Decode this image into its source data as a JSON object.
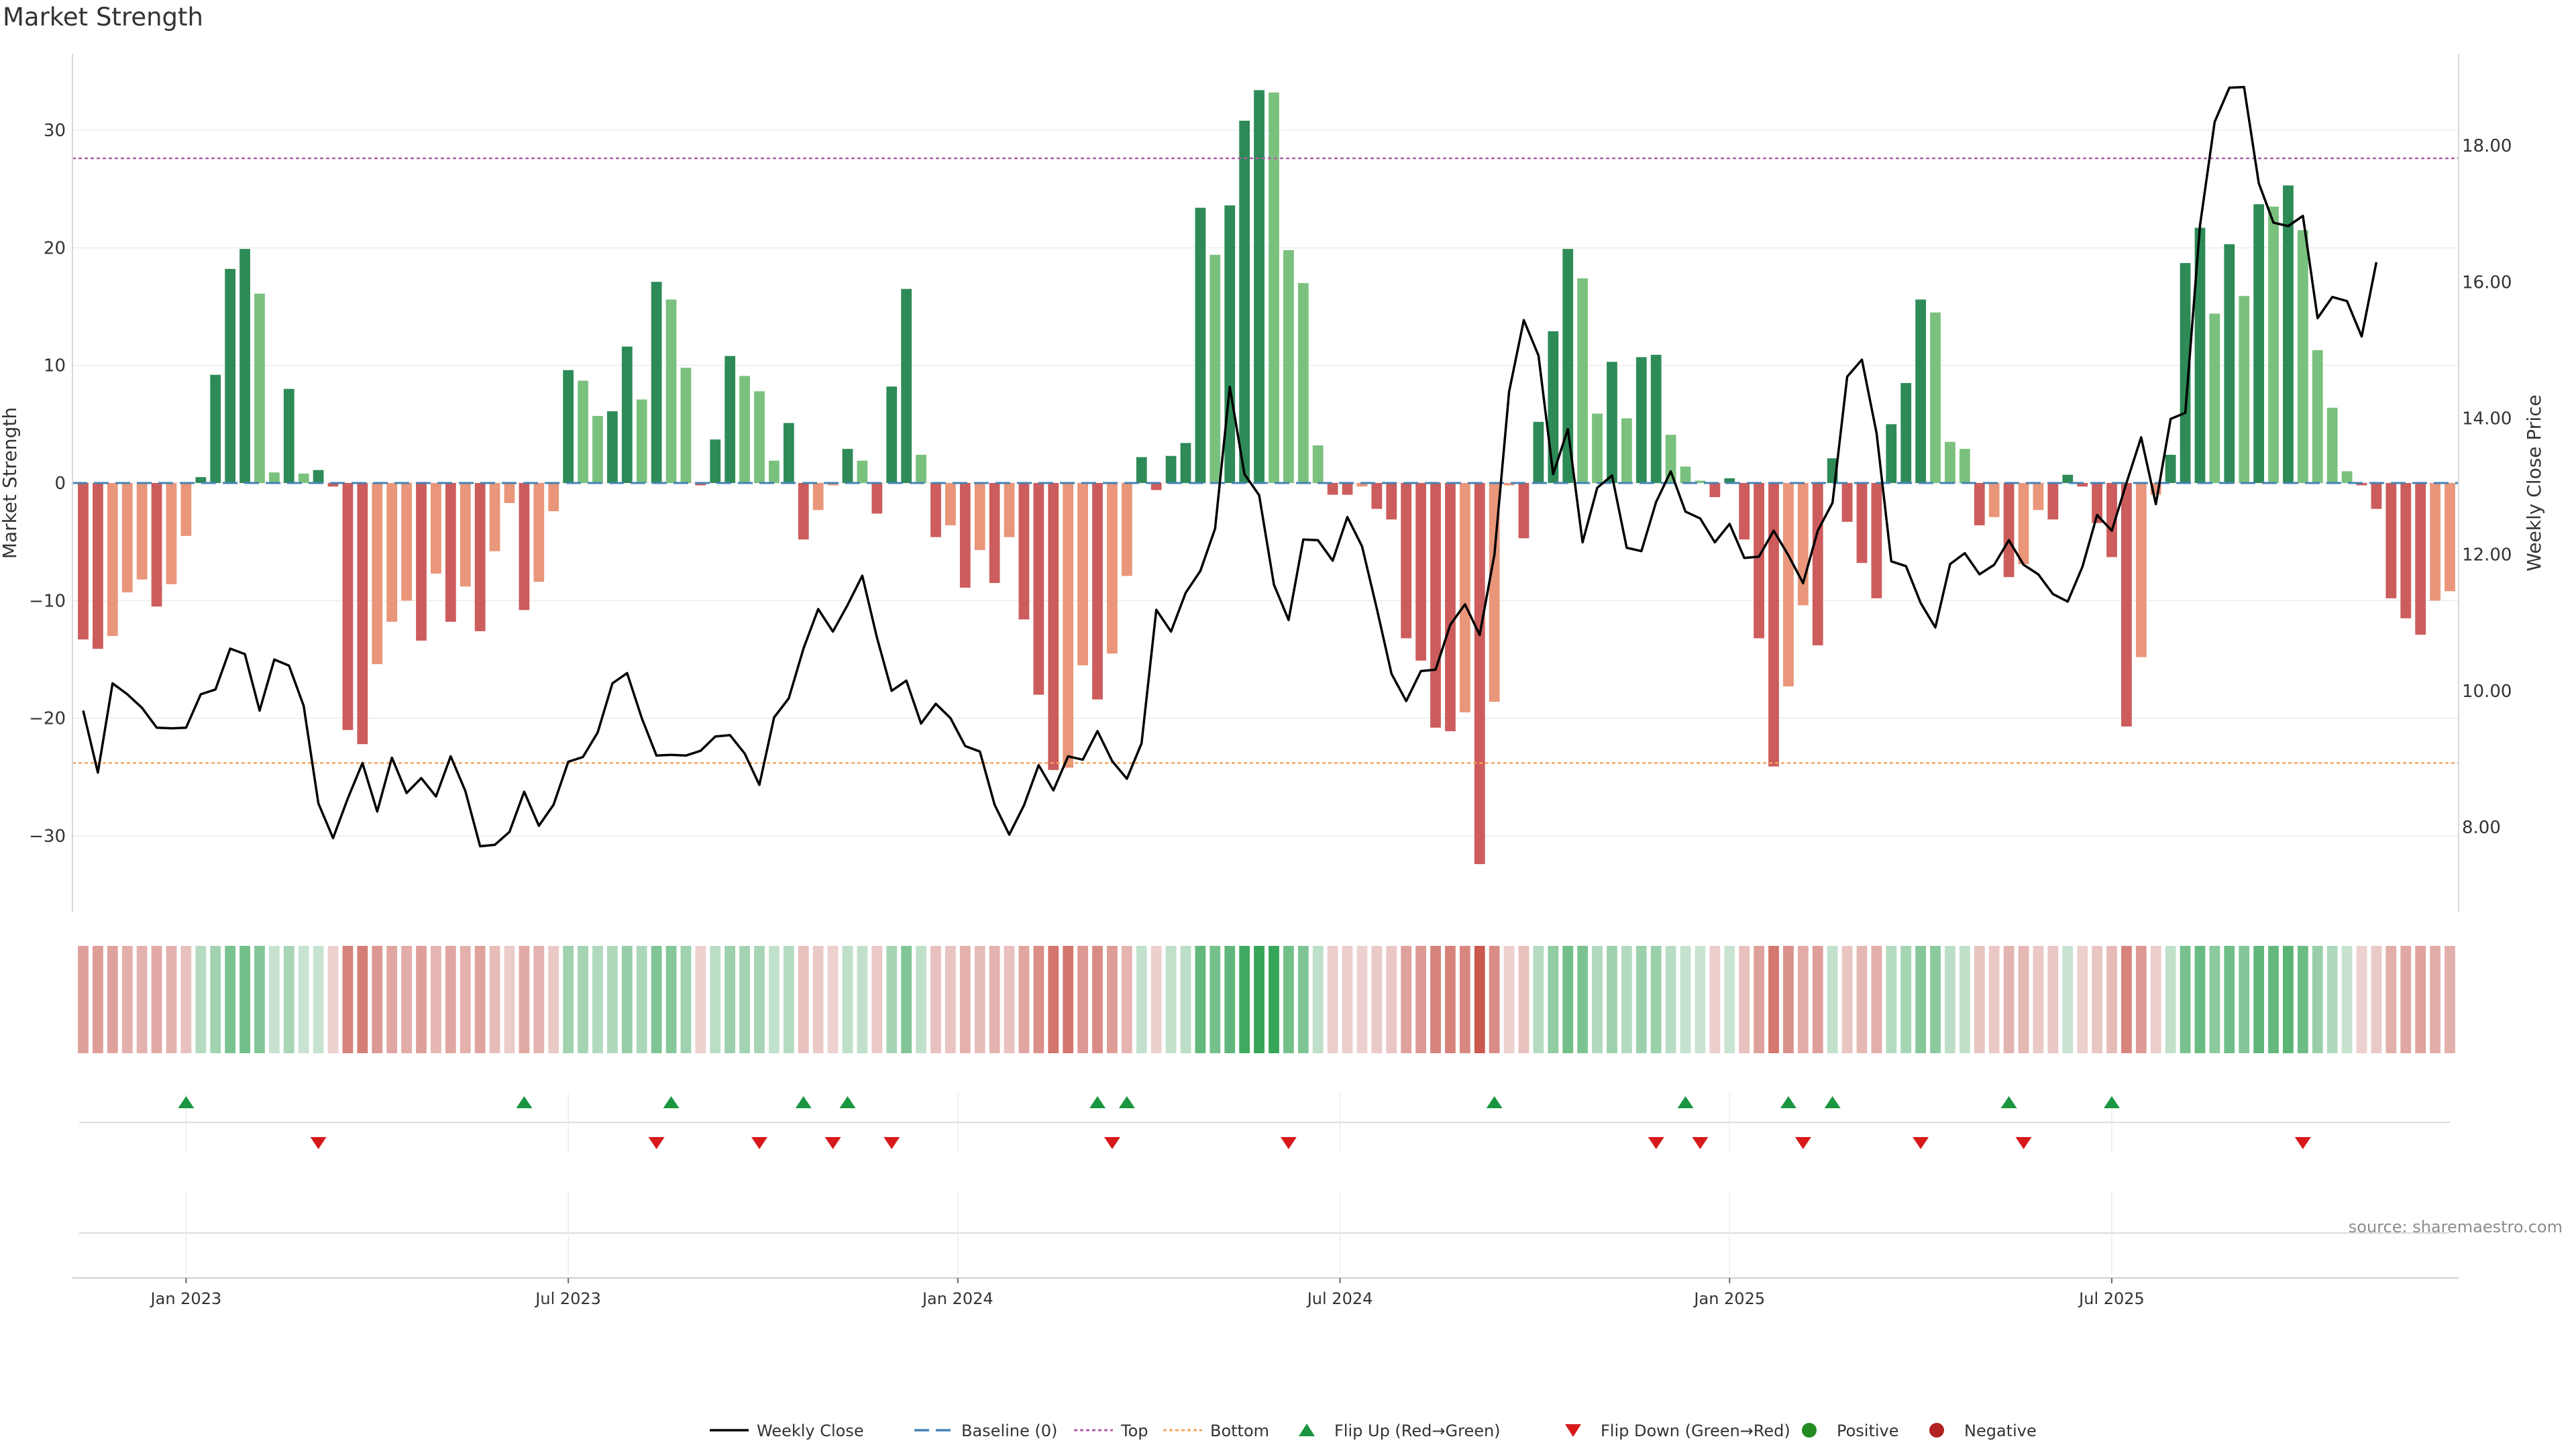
{
  "header": {
    "title": "Market Strength"
  },
  "source_text": "source: sharemaestro.com",
  "legend": {
    "weekly_close": "Weekly Close",
    "baseline": "Baseline (0)",
    "top": "Top",
    "bottom": "Bottom",
    "flip_up": "Flip Up (Red→Green)",
    "flip_down": "Flip Down (Green→Red)",
    "positive": "Positive",
    "negative": "Negative"
  },
  "colors": {
    "pos_dark": "#2e8b57",
    "pos_light": "#7bc17e",
    "neg_dark": "#cd5c5c",
    "neg_light": "#e9967a",
    "price_line": "#000000",
    "baseline": "#4682b4",
    "top_line": "#b05fa8",
    "bottom_line": "#f4a460",
    "flip_up": "#1a9641",
    "flip_down": "#d7191c",
    "positive_dot": "#228b22",
    "negative_dot": "#b22222"
  },
  "chart_data": {
    "type": "bar",
    "ylabel": "Market Strength",
    "y2label": "Weekly Close Price",
    "ylim": [
      -36.5,
      36.5
    ],
    "y2lim": [
      6.75,
      19.35
    ],
    "yticks": [
      -30,
      -20,
      -10,
      0,
      10,
      20,
      30
    ],
    "y2ticks": [
      "8.00",
      "10.00",
      "12.00",
      "14.00",
      "16.00",
      "18.00"
    ],
    "top_threshold": 27.6,
    "bottom_threshold": -23.8,
    "xticks": [
      {
        "label": "Jan 2023",
        "week": 7
      },
      {
        "label": "Jul 2023",
        "week": 33
      },
      {
        "label": "Jan 2024",
        "week": 59.5
      },
      {
        "label": "Jul 2024",
        "week": 85.5
      },
      {
        "label": "Jan 2025",
        "week": 112
      },
      {
        "label": "Jul 2025",
        "week": 138
      }
    ],
    "strength": [
      -13.3,
      -14.1,
      -13.0,
      -9.3,
      -8.2,
      -10.5,
      -8.6,
      -4.5,
      0.5,
      9.2,
      18.2,
      19.9,
      16.1,
      0.9,
      8.0,
      0.8,
      1.1,
      -0.3,
      -21.0,
      -22.2,
      -15.4,
      -11.8,
      -10.0,
      -13.4,
      -7.7,
      -11.8,
      -8.8,
      -12.6,
      -5.8,
      -1.7,
      -10.8,
      -8.4,
      -2.4,
      9.6,
      8.7,
      5.7,
      6.1,
      11.6,
      7.1,
      17.1,
      15.6,
      9.8,
      -0.2,
      3.7,
      10.8,
      9.1,
      7.8,
      1.9,
      5.1,
      -4.8,
      -2.3,
      -0.2,
      2.9,
      1.9,
      -2.6,
      8.2,
      16.5,
      2.4,
      -4.6,
      -3.6,
      -8.9,
      -5.7,
      -8.5,
      -4.6,
      -11.6,
      -18.0,
      -24.4,
      -24.2,
      -15.5,
      -18.4,
      -14.5,
      -7.9,
      2.2,
      -0.6,
      2.3,
      3.4,
      23.4,
      19.4,
      23.6,
      30.8,
      33.4,
      33.2,
      19.8,
      17.0,
      3.2,
      -1.0,
      -1.0,
      -0.3,
      -2.2,
      -3.1,
      -13.2,
      -15.1,
      -20.8,
      -21.1,
      -19.5,
      -32.4,
      -18.6,
      -0.2,
      -4.7,
      5.2,
      12.9,
      19.9,
      17.4,
      5.9,
      10.3,
      5.5,
      10.7,
      10.9,
      4.1,
      1.4,
      0.2,
      -1.2,
      0.4,
      -4.8,
      -13.2,
      -24.1,
      -17.3,
      -10.4,
      -13.8,
      2.1,
      -3.3,
      -6.8,
      -9.8,
      5.0,
      8.5,
      15.6,
      14.5,
      3.5,
      2.9,
      -3.6,
      -2.9,
      -8.0,
      -6.9,
      -2.3,
      -3.1,
      0.7,
      -0.3,
      -3.4,
      -6.3,
      -20.7,
      -14.8,
      -1.0,
      2.4,
      18.7,
      21.7,
      14.4,
      20.3,
      15.9,
      23.7,
      23.5,
      25.3,
      21.5,
      11.3,
      6.4,
      1.0,
      -0.2,
      -2.2,
      -9.8,
      -11.5,
      -12.9,
      -10.0,
      -9.2
    ],
    "weekly_close": [
      9.71,
      8.8,
      10.11,
      9.95,
      9.75,
      9.46,
      9.45,
      9.46,
      9.95,
      10.02,
      10.62,
      10.54,
      9.71,
      10.46,
      10.37,
      9.78,
      8.35,
      7.84,
      8.42,
      8.94,
      8.23,
      9.02,
      8.5,
      8.72,
      8.45,
      9.04,
      8.53,
      7.72,
      7.74,
      7.93,
      8.52,
      8.02,
      8.33,
      8.96,
      9.03,
      9.39,
      10.11,
      10.26,
      9.6,
      9.05,
      9.06,
      9.05,
      9.12,
      9.33,
      9.35,
      9.08,
      8.62,
      9.61,
      9.89,
      10.62,
      11.2,
      10.87,
      11.26,
      11.69,
      10.78,
      10.0,
      10.15,
      9.52,
      9.81,
      9.6,
      9.19,
      9.11,
      8.33,
      7.89,
      8.32,
      8.91,
      8.54,
      9.04,
      8.99,
      9.41,
      8.97,
      8.71,
      9.23,
      11.19,
      10.87,
      11.44,
      11.76,
      12.38,
      14.46,
      13.18,
      12.87,
      11.56,
      11.04,
      12.22,
      12.21,
      11.91,
      12.55,
      12.12,
      11.21,
      10.25,
      9.85,
      10.29,
      10.31,
      10.97,
      11.27,
      10.82,
      12.0,
      14.39,
      15.44,
      14.92,
      13.18,
      13.84,
      12.18,
      12.98,
      13.16,
      12.1,
      12.05,
      12.77,
      13.22,
      12.63,
      12.53,
      12.18,
      12.45,
      11.95,
      11.97,
      12.35,
      11.99,
      11.58,
      12.35,
      12.76,
      14.61,
      14.86,
      13.78,
      11.9,
      11.83,
      11.29,
      10.93,
      11.86,
      12.02,
      11.71,
      11.85,
      12.21,
      11.85,
      11.71,
      11.42,
      11.31,
      11.82,
      12.58,
      12.35,
      13.05,
      13.72,
      12.74,
      13.99,
      14.08,
      16.83,
      18.35,
      18.85,
      18.86,
      17.45,
      16.87,
      16.82,
      16.97,
      15.47,
      15.78,
      15.72,
      15.2,
      16.29
    ],
    "heat_strip": [
      -0.39,
      -0.41,
      -0.38,
      -0.27,
      -0.24,
      -0.31,
      -0.25,
      -0.13,
      0.15,
      0.27,
      0.53,
      0.58,
      0.47,
      0.03,
      0.23,
      0.02,
      0.03,
      -0.01,
      -0.61,
      -0.65,
      -0.45,
      -0.34,
      -0.29,
      -0.39,
      -0.22,
      -0.34,
      -0.26,
      -0.37,
      -0.17,
      -0.05,
      -0.31,
      -0.24,
      -0.07,
      0.28,
      0.25,
      0.17,
      0.18,
      0.34,
      0.21,
      0.5,
      0.45,
      0.29,
      -0.01,
      0.11,
      0.31,
      0.26,
      0.23,
      0.06,
      0.15,
      -0.14,
      -0.07,
      -0.01,
      0.08,
      0.06,
      -0.08,
      0.24,
      0.48,
      0.07,
      -0.13,
      -0.11,
      -0.26,
      -0.17,
      -0.25,
      -0.13,
      -0.34,
      -0.52,
      -0.71,
      -0.7,
      -0.45,
      -0.54,
      -0.42,
      -0.23,
      0.06,
      -0.02,
      0.07,
      0.1,
      0.68,
      0.56,
      0.69,
      0.9,
      0.97,
      0.97,
      0.58,
      0.5,
      0.09,
      -0.03,
      -0.03,
      -0.01,
      -0.06,
      -0.09,
      -0.38,
      -0.44,
      -0.61,
      -0.61,
      -0.57,
      -0.94,
      -0.54,
      -0.01,
      -0.14,
      0.15,
      0.38,
      0.58,
      0.51,
      0.17,
      0.3,
      0.16,
      0.31,
      0.32,
      0.12,
      0.04,
      0.01,
      -0.03,
      0.01,
      -0.14,
      -0.38,
      -0.7,
      -0.5,
      -0.3,
      -0.4,
      0.06,
      -0.1,
      -0.2,
      -0.28,
      0.15,
      0.25,
      0.45,
      0.42,
      0.1,
      0.08,
      -0.1,
      -0.08,
      -0.23,
      -0.2,
      -0.07,
      -0.09,
      0.02,
      -0.01,
      -0.1,
      -0.18,
      -0.6,
      -0.43,
      -0.03,
      0.07,
      0.54,
      0.63,
      0.42,
      0.59,
      0.46,
      0.69,
      0.68,
      0.74,
      0.62,
      0.33,
      0.19,
      0.03,
      -0.01,
      -0.06,
      -0.28,
      -0.33,
      -0.37,
      -0.29,
      -0.27
    ],
    "flip_up_weeks": [
      7,
      30,
      40,
      49,
      52,
      69,
      71,
      96,
      109,
      116,
      119,
      131,
      138
    ],
    "flip_down_weeks": [
      16,
      39,
      46,
      51,
      55,
      70,
      82,
      107,
      110,
      117,
      125,
      132,
      151
    ]
  }
}
